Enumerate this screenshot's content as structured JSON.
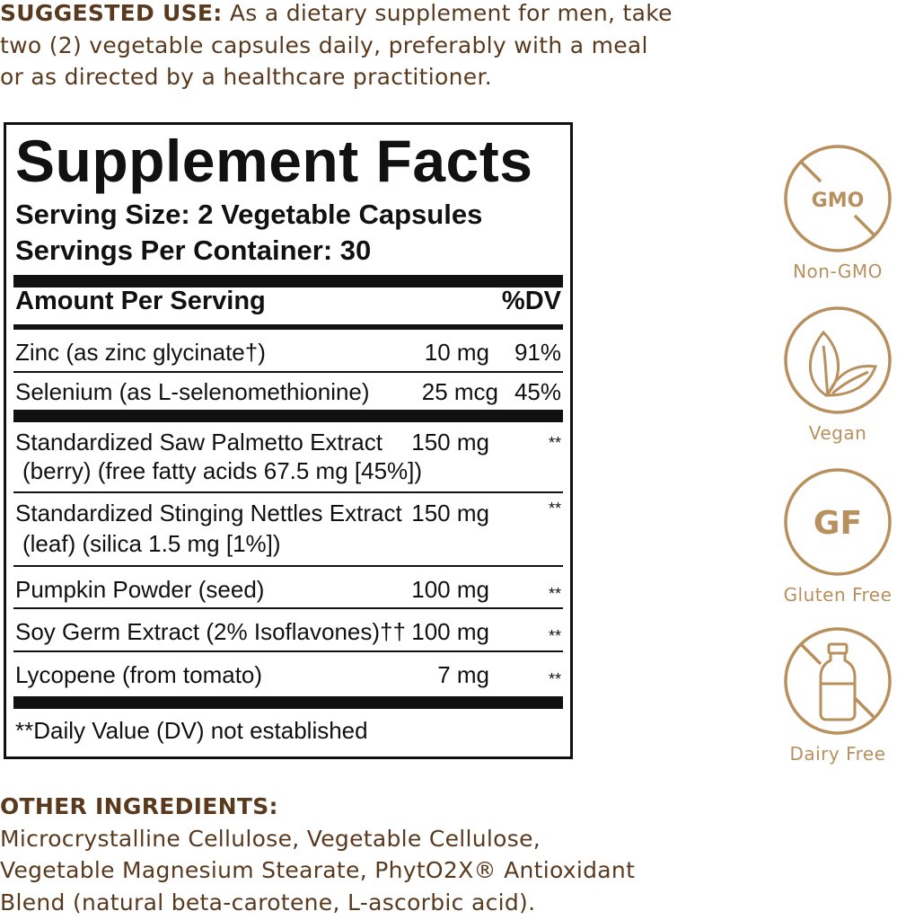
{
  "suggested_use": {
    "heading": "SUGGESTED USE:",
    "lines": [
      " As a dietary supplement for men, take",
      "two (2) vegetable capsules daily, preferably with a meal",
      "or as directed by a healthcare practitioner."
    ]
  },
  "facts": {
    "title": "Supplement Facts",
    "serving_size": "Serving Size: 2 Vegetable Capsules",
    "servings_per_container": "Servings Per Container: 30",
    "amount_header": "Amount Per Serving",
    "dv_header": "%DV",
    "rows": [
      {
        "name": "Zinc (as zinc glycinate†)",
        "amount": "10 mg",
        "dv": "91%"
      },
      {
        "name": "Selenium (as L-selenomethionine)",
        "amount": "25 mcg",
        "dv": "45%"
      },
      {
        "name": "Standardized Saw Palmetto Extract",
        "name2": "(berry) (free fatty acids 67.5 mg [45%])",
        "amount": "150 mg",
        "dv": "**"
      },
      {
        "name": "Standardized Stinging Nettles Extract",
        "name2": "(leaf) (silica 1.5 mg [1%])",
        "amount": "150 mg",
        "dv": "**"
      },
      {
        "name": "Pumpkin Powder (seed)",
        "amount": "100 mg",
        "dv": "**"
      },
      {
        "name": "Soy Germ Extract (2% Isoflavones)††",
        "amount": "100 mg",
        "dv": "**"
      },
      {
        "name": "Lycopene (from tomato)",
        "amount": "7 mg",
        "dv": "**"
      }
    ],
    "footnote": "**Daily Value (DV) not established"
  },
  "badges": [
    {
      "icon": "non-gmo-icon",
      "icon_text": "GMO",
      "label": "Non-GMO"
    },
    {
      "icon": "vegan-leaf-icon",
      "label": "Vegan"
    },
    {
      "icon": "gluten-free-icon",
      "icon_text": "GF",
      "label": "Gluten Free"
    },
    {
      "icon": "dairy-free-bottle-icon",
      "label": "Dairy Free"
    }
  ],
  "other_ingredients": {
    "heading": "OTHER INGREDIENTS:",
    "lines": [
      "Microcrystalline Cellulose, Vegetable Cellulose,",
      "Vegetable Magnesium Stearate, PhytO2X® Antioxidant",
      "Blend (natural beta-carotene, L-ascorbic acid)."
    ]
  },
  "colors": {
    "text_brown": "#5a3a1e",
    "badge_gold": "#b8905e",
    "panel_black": "#111111"
  }
}
